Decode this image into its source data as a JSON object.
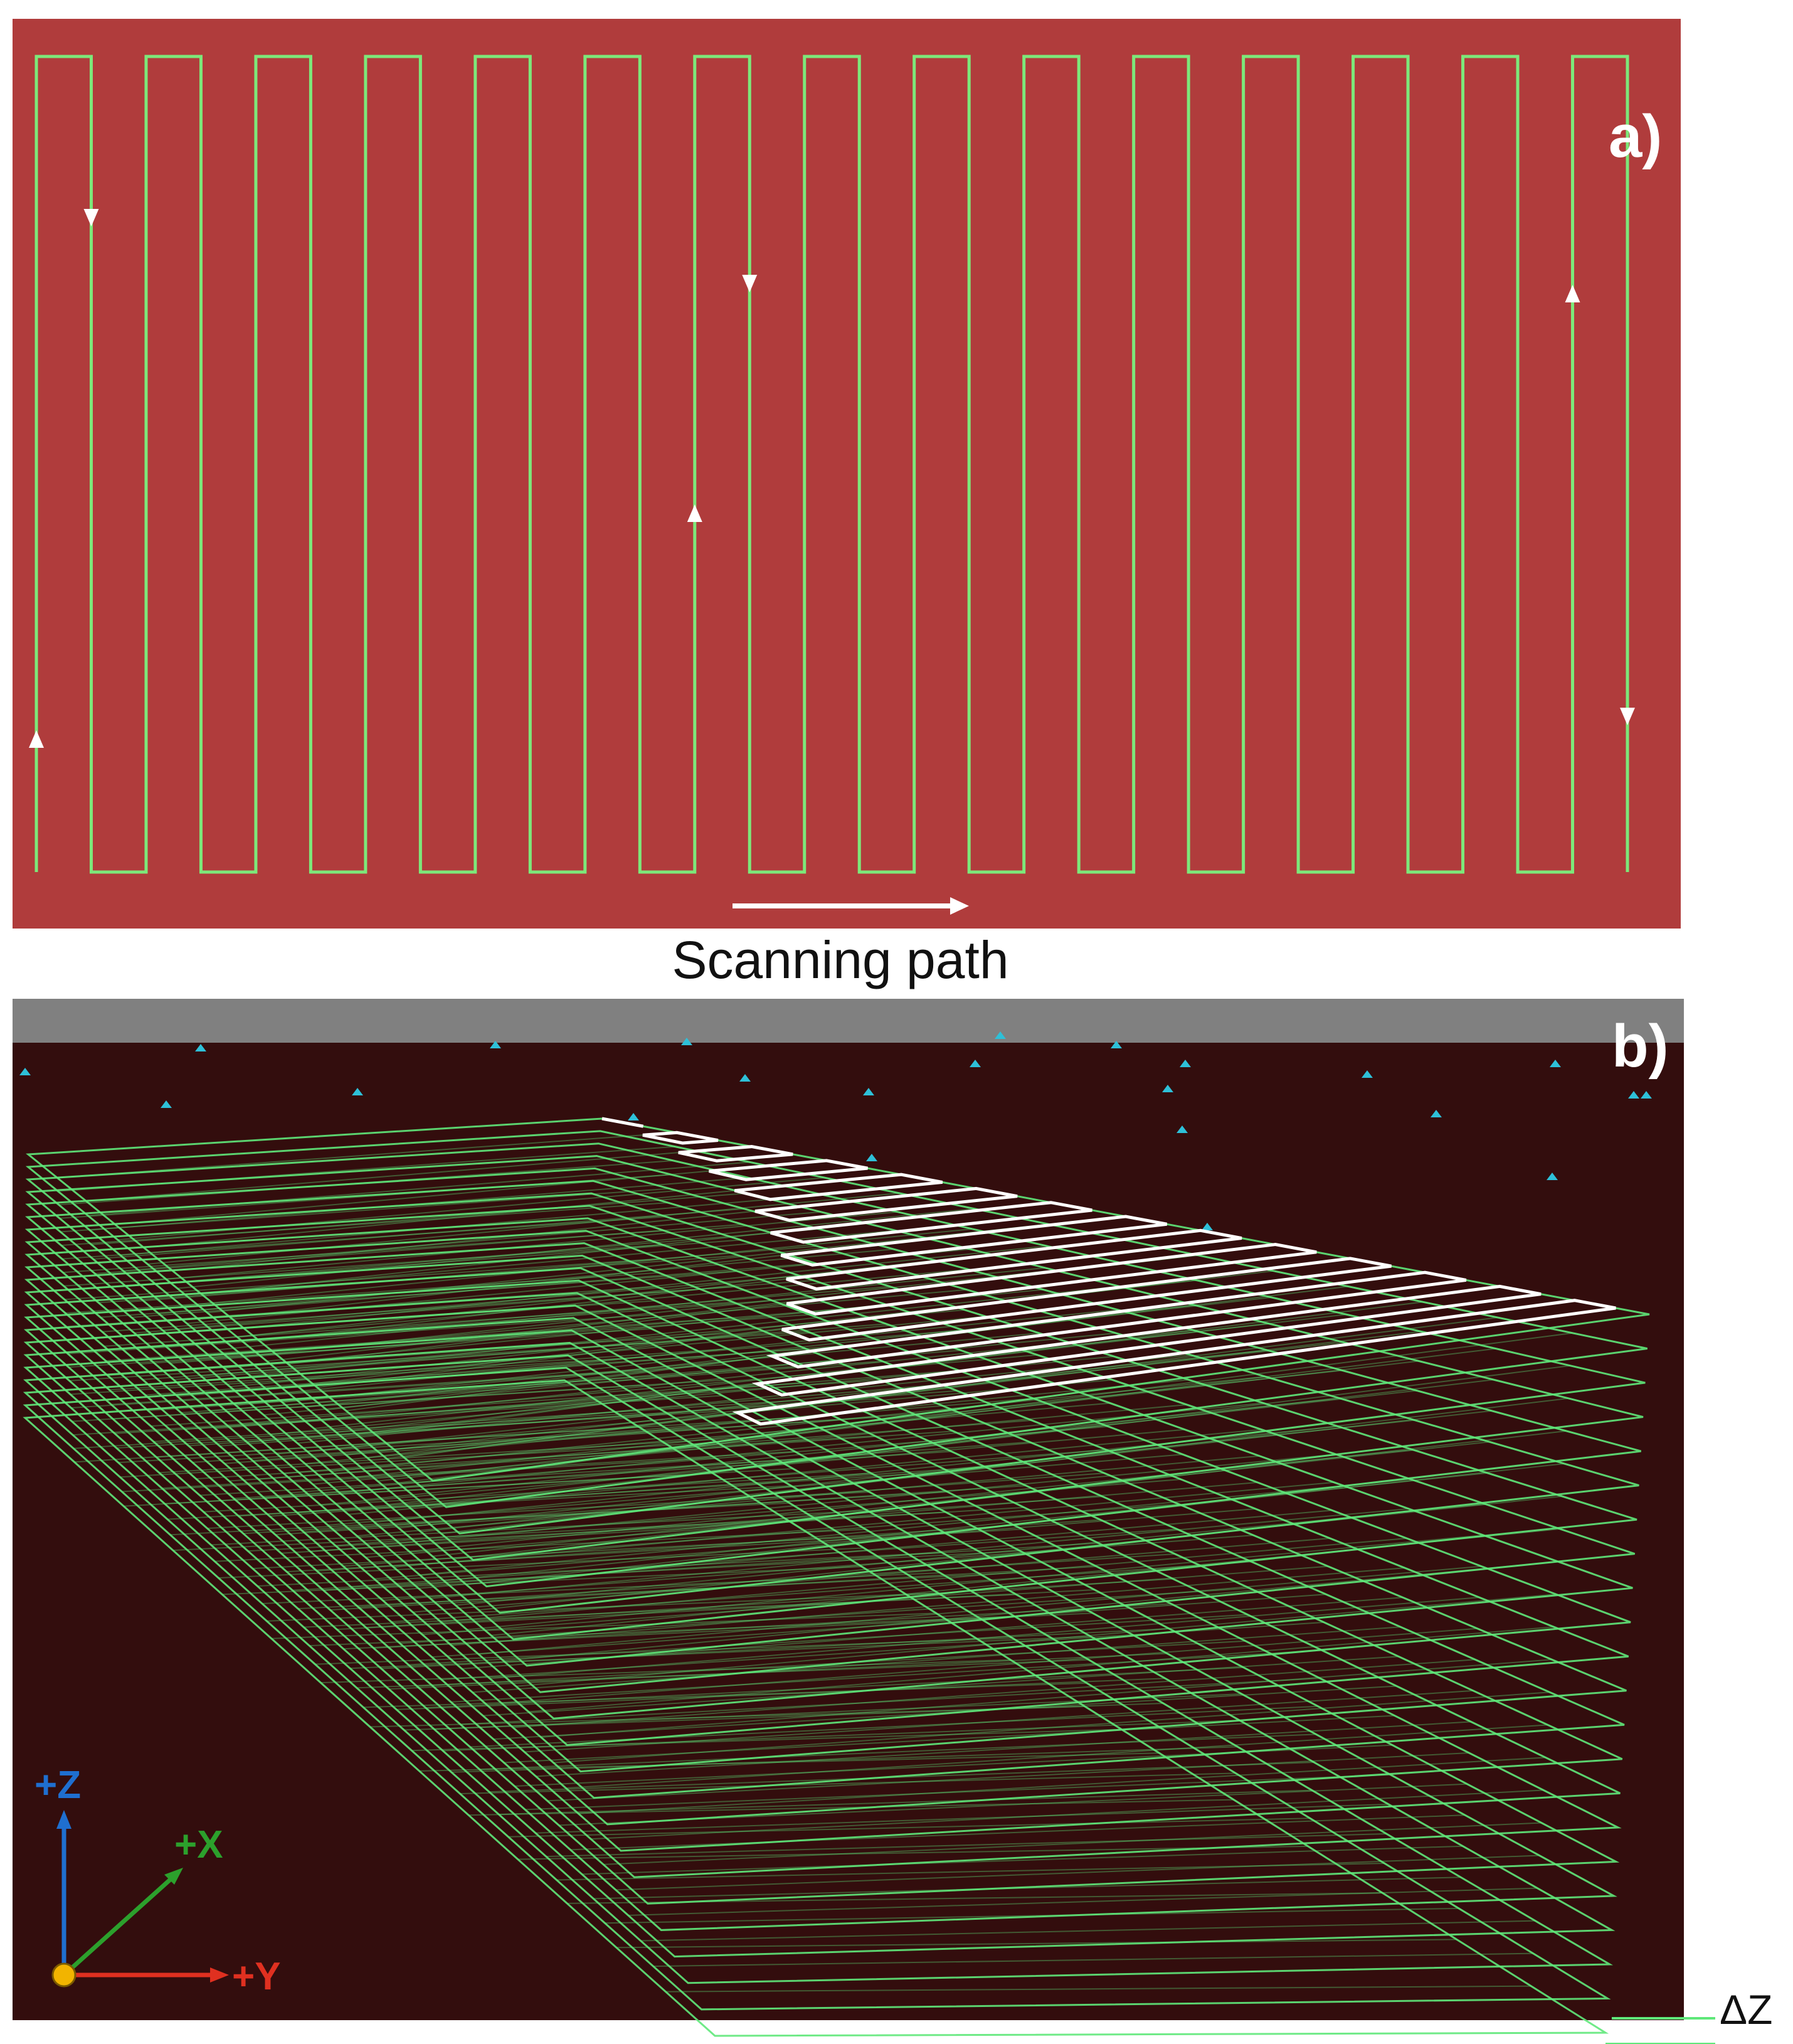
{
  "panel_a": {
    "label": "a)",
    "caption": "Scanning path",
    "background_color": "#b03c3c",
    "path_color": "#7de87a",
    "arrow_color": "#ffffff",
    "pass_count": 30
  },
  "panel_b": {
    "label": "b)",
    "background_color": "#330d0d",
    "top_band_color": "#808080",
    "layer_color": "#5fe87a",
    "highlight_color": "#ffffff",
    "marker_color": "#2ec0d8",
    "layer_count": 22,
    "delta_label": "ΔZ",
    "axes": {
      "z_label": "+Z",
      "x_label": "+X",
      "y_label": "+Y",
      "z_color": "#1f6fd0",
      "x_color": "#2ca02c",
      "y_color": "#e03020",
      "origin_color": "#f2b400"
    }
  }
}
